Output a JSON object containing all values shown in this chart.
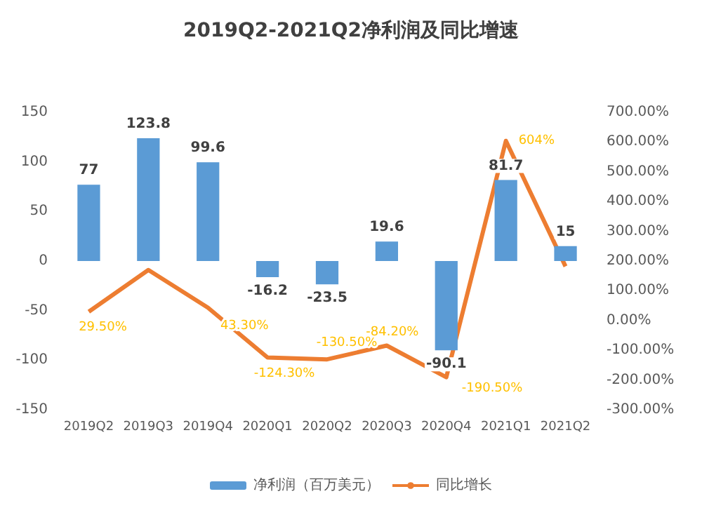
{
  "chart_data": {
    "type": "bar",
    "title": "2019Q2-2021Q2净利润及同比增速",
    "categories": [
      "2019Q2",
      "2019Q3",
      "2019Q4",
      "2020Q1",
      "2020Q2",
      "2020Q3",
      "2020Q4",
      "2021Q1",
      "2021Q2"
    ],
    "series": [
      {
        "name": "净利润（百万美元）",
        "color": "#5b9bd5",
        "values": [
          77,
          123.8,
          99.6,
          -16.2,
          -23.5,
          19.6,
          -90.1,
          81.7,
          15
        ],
        "data_labels": true
      },
      {
        "name": "同比增长",
        "type": "line",
        "axis": "y2",
        "color": "#ed7d31",
        "values": [
          29.5,
          170,
          43.3,
          -124.3,
          -130.5,
          -84.2,
          -190.5,
          604,
          182
        ],
        "value_labels": [
          "29.50%",
          null,
          "43.30%",
          "-124.30%",
          "-130.50%",
          "-84.20%",
          "-190.50%",
          "604%",
          null
        ]
      }
    ],
    "ylim": [
      -150,
      150
    ],
    "yticks": [
      -150,
      -100,
      -50,
      0,
      50,
      100,
      150
    ],
    "y2lim": [
      -300,
      700
    ],
    "y2ticks": [
      {
        "value": -300,
        "label": "-300.00%"
      },
      {
        "value": -200,
        "label": "-200.00%"
      },
      {
        "value": -100,
        "label": "-100.00%"
      },
      {
        "value": 0,
        "label": "0.00%"
      },
      {
        "value": 100,
        "label": "100.00%"
      },
      {
        "value": 200,
        "label": "200.00%"
      },
      {
        "value": 300,
        "label": "300.00%"
      },
      {
        "value": 400,
        "label": "400.00%"
      },
      {
        "value": 500,
        "label": "500.00%"
      },
      {
        "value": 600,
        "label": "600.00%"
      },
      {
        "value": 700,
        "label": "700.00%"
      }
    ],
    "grid": false,
    "legend": "bottom",
    "marker": "none"
  }
}
